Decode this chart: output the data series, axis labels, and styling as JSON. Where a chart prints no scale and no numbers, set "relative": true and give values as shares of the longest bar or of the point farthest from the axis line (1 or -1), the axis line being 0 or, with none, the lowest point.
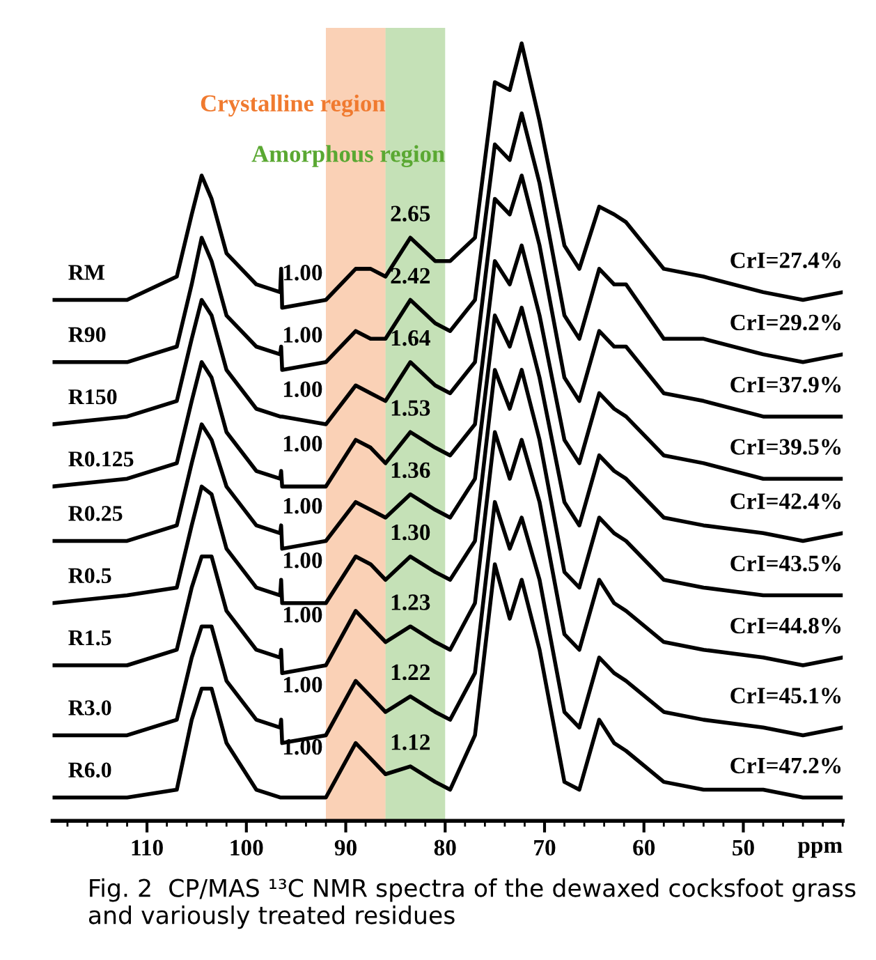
{
  "chart_data": {
    "type": "line",
    "relative": true,
    "x": [
      119.5,
      112,
      107,
      105.5,
      104.5,
      103.5,
      102,
      99,
      96.6,
      96.5,
      96.4,
      92,
      89,
      87.5,
      86,
      83.5,
      81,
      79.5,
      77,
      75,
      73.5,
      72.3,
      70.5,
      68,
      66.5,
      64.5,
      63,
      61.8,
      58,
      54,
      48,
      44,
      40
    ],
    "xlim": [
      119.5,
      40
    ],
    "xticks": [
      110,
      100,
      90,
      80,
      70,
      60,
      50
    ],
    "xlabel": "ppm",
    "tick_labels": "x",
    "grid": false,
    "legend": false,
    "marker": "none",
    "line_style": "solid",
    "series": [
      {
        "name": "RM",
        "color": "#000000",
        "values": [
          0.67,
          0.67,
          0.7,
          0.78,
          0.83,
          0.8,
          0.73,
          0.69,
          0.68,
          0.71,
          0.66,
          0.67,
          0.71,
          0.71,
          0.7,
          0.75,
          0.72,
          0.72,
          0.75,
          0.95,
          0.94,
          1,
          0.9,
          0.74,
          0.71,
          0.79,
          0.78,
          0.77,
          0.71,
          0.7,
          0.68,
          0.67,
          0.68
        ]
      },
      {
        "name": "R90",
        "color": "#000000",
        "values": [
          0.59,
          0.59,
          0.61,
          0.69,
          0.75,
          0.72,
          0.65,
          0.61,
          0.6,
          0.61,
          0.58,
          0.59,
          0.63,
          0.62,
          0.62,
          0.67,
          0.64,
          0.63,
          0.67,
          0.87,
          0.85,
          0.91,
          0.82,
          0.65,
          0.62,
          0.71,
          0.69,
          0.69,
          0.62,
          0.62,
          0.6,
          0.59,
          0.6
        ]
      },
      {
        "name": "R150",
        "color": "#000000",
        "values": [
          0.51,
          0.52,
          0.54,
          0.62,
          0.67,
          0.65,
          0.58,
          0.53,
          0.52,
          0.52,
          0.52,
          0.51,
          0.56,
          0.55,
          0.54,
          0.59,
          0.56,
          0.55,
          0.59,
          0.8,
          0.78,
          0.83,
          0.74,
          0.57,
          0.54,
          0.63,
          0.61,
          0.61,
          0.55,
          0.54,
          0.52,
          0.52,
          0.52
        ]
      },
      {
        "name": "R0.125",
        "color": "#000000",
        "values": [
          0.43,
          0.44,
          0.46,
          0.54,
          0.59,
          0.57,
          0.5,
          0.45,
          0.44,
          0.45,
          0.43,
          0.43,
          0.49,
          0.48,
          0.46,
          0.5,
          0.48,
          0.47,
          0.51,
          0.72,
          0.69,
          0.74,
          0.65,
          0.49,
          0.46,
          0.55,
          0.53,
          0.52,
          0.47,
          0.46,
          0.44,
          0.44,
          0.44
        ]
      },
      {
        "name": "R0.25",
        "color": "#000000",
        "values": [
          0.36,
          0.36,
          0.38,
          0.46,
          0.51,
          0.49,
          0.43,
          0.38,
          0.37,
          0.38,
          0.35,
          0.36,
          0.41,
          0.4,
          0.39,
          0.42,
          0.4,
          0.39,
          0.44,
          0.65,
          0.61,
          0.66,
          0.57,
          0.41,
          0.38,
          0.47,
          0.45,
          0.44,
          0.39,
          0.38,
          0.37,
          0.36,
          0.37
        ]
      },
      {
        "name": "R0.5",
        "color": "#000000",
        "values": [
          0.28,
          0.29,
          0.3,
          0.38,
          0.43,
          0.42,
          0.35,
          0.3,
          0.29,
          0.31,
          0.28,
          0.28,
          0.34,
          0.33,
          0.31,
          0.34,
          0.32,
          0.31,
          0.36,
          0.58,
          0.53,
          0.58,
          0.49,
          0.32,
          0.3,
          0.39,
          0.37,
          0.36,
          0.31,
          0.3,
          0.29,
          0.29,
          0.29
        ]
      },
      {
        "name": "R1.5",
        "color": "#000000",
        "values": [
          0.2,
          0.2,
          0.22,
          0.3,
          0.34,
          0.34,
          0.27,
          0.22,
          0.21,
          0.22,
          0.19,
          0.2,
          0.27,
          0.25,
          0.23,
          0.25,
          0.23,
          0.22,
          0.28,
          0.5,
          0.44,
          0.49,
          0.41,
          0.24,
          0.22,
          0.31,
          0.28,
          0.27,
          0.23,
          0.22,
          0.21,
          0.2,
          0.21
        ]
      },
      {
        "name": "R3.0",
        "color": "#000000",
        "values": [
          0.11,
          0.11,
          0.13,
          0.21,
          0.25,
          0.25,
          0.18,
          0.13,
          0.12,
          0.13,
          0.1,
          0.11,
          0.18,
          0.16,
          0.14,
          0.16,
          0.14,
          0.13,
          0.19,
          0.41,
          0.35,
          0.39,
          0.31,
          0.14,
          0.12,
          0.21,
          0.19,
          0.18,
          0.14,
          0.13,
          0.12,
          0.11,
          0.12
        ]
      },
      {
        "name": "R6.0",
        "color": "#000000",
        "values": [
          0.03,
          0.03,
          0.04,
          0.13,
          0.17,
          0.17,
          0.1,
          0.04,
          0.03,
          0.03,
          0.03,
          0.03,
          0.1,
          0.08,
          0.06,
          0.07,
          0.05,
          0.04,
          0.11,
          0.33,
          0.26,
          0.31,
          0.22,
          0.05,
          0.04,
          0.13,
          0.1,
          0.09,
          0.05,
          0.04,
          0.04,
          0.03,
          0.03
        ]
      }
    ],
    "bands": [
      {
        "axis": "x",
        "from": 92,
        "to": 86,
        "label": "Crystalline region",
        "color": "#f07a2f"
      },
      {
        "axis": "x",
        "from": 86,
        "to": 80,
        "label": "Amorphous region",
        "color": "#5aa832"
      }
    ],
    "annotations": [
      {
        "text": "1.00",
        "x": 89,
        "y": 0.71
      },
      {
        "text": "1.00",
        "x": 89,
        "y": 0.63
      },
      {
        "text": "1.00",
        "x": 89,
        "y": 0.56
      },
      {
        "text": "1.00",
        "x": 89,
        "y": 0.49
      },
      {
        "text": "1.00",
        "x": 89,
        "y": 0.41
      },
      {
        "text": "1.00",
        "x": 89,
        "y": 0.34
      },
      {
        "text": "1.00",
        "x": 89,
        "y": 0.27
      },
      {
        "text": "1.00",
        "x": 89,
        "y": 0.18
      },
      {
        "text": "1.00",
        "x": 89,
        "y": 0.1
      },
      {
        "text": "2.65",
        "x": 83.5,
        "y": 0.75
      },
      {
        "text": "2.42",
        "x": 83.5,
        "y": 0.67
      },
      {
        "text": "1.64",
        "x": 83.5,
        "y": 0.59
      },
      {
        "text": "1.53",
        "x": 83.5,
        "y": 0.5
      },
      {
        "text": "1.36",
        "x": 83.5,
        "y": 0.42
      },
      {
        "text": "1.30",
        "x": 83.5,
        "y": 0.34
      },
      {
        "text": "1.23",
        "x": 83.5,
        "y": 0.25
      },
      {
        "text": "1.22",
        "x": 83.5,
        "y": 0.16
      },
      {
        "text": "1.12",
        "x": 83.5,
        "y": 0.07
      },
      {
        "text": "CrI=27.4%",
        "x": 40,
        "y": 0.68
      },
      {
        "text": "CrI=29.2%",
        "x": 40,
        "y": 0.6
      },
      {
        "text": "CrI=37.9%",
        "x": 40,
        "y": 0.52
      },
      {
        "text": "CrI=39.5%",
        "x": 40,
        "y": 0.44
      },
      {
        "text": "CrI=42.4%",
        "x": 40,
        "y": 0.37
      },
      {
        "text": "CrI=43.5%",
        "x": 40,
        "y": 0.29
      },
      {
        "text": "CrI=44.8%",
        "x": 40,
        "y": 0.21
      },
      {
        "text": "CrI=45.1%",
        "x": 40,
        "y": 0.12
      },
      {
        "text": "CrI=47.2%",
        "x": 40,
        "y": 0.03
      },
      "Fig. 2  CP/MAS ¹³C NMR spectra of the dewaxed cocksfoot grass and variously treated residues"
    ]
  }
}
